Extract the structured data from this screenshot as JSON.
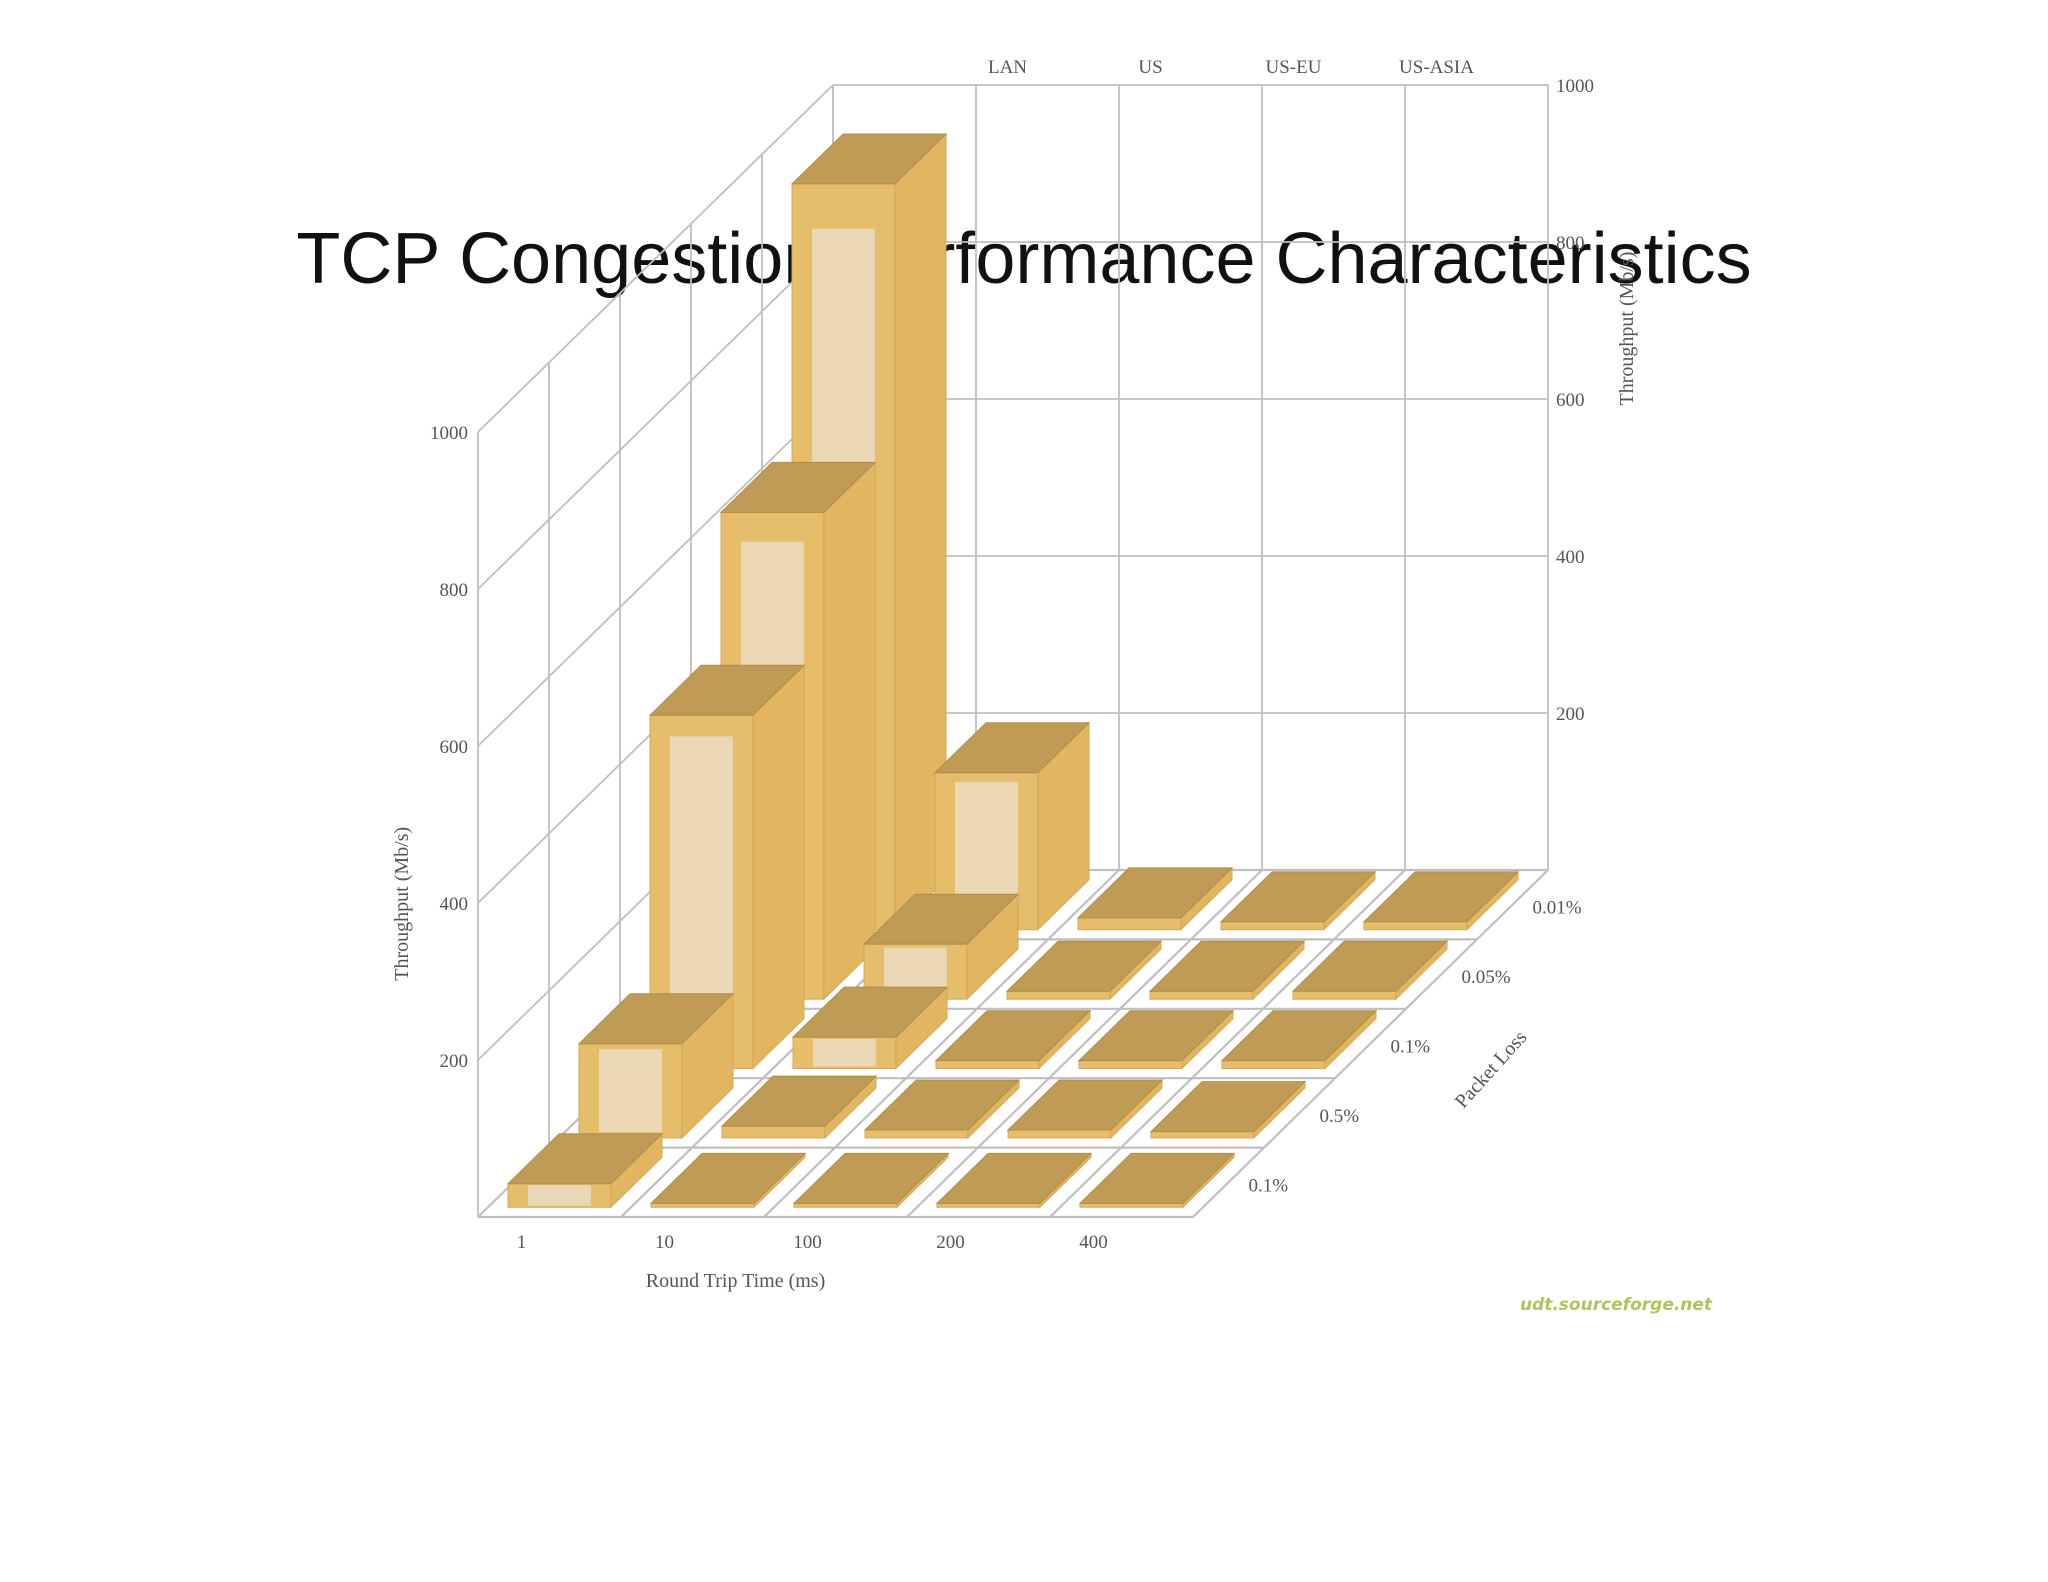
{
  "slide": {
    "title": "TCP Congestion Performance Characteristics"
  },
  "chart_data": {
    "type": "bar3d",
    "x_axis": {
      "label": "Round Trip Time (ms)",
      "categories": [
        "1",
        "10",
        "100",
        "200",
        "400"
      ]
    },
    "depth_axis": {
      "label": "Packet Loss",
      "categories": [
        "0.1%",
        "0.5%",
        "0.1%",
        "0.05%",
        "0.01%"
      ]
    },
    "back_labels": [
      "LAN",
      "US",
      "US-EU",
      "US-ASIA"
    ],
    "y_axis": {
      "label": "Throughput (Mb/s)",
      "ticks": [
        "200",
        "400",
        "600",
        "800",
        "1000"
      ],
      "ylim": [
        0,
        1000
      ]
    },
    "values": [
      [
        30,
        5,
        5,
        5,
        5
      ],
      [
        120,
        15,
        10,
        10,
        8
      ],
      [
        450,
        40,
        10,
        10,
        10
      ],
      [
        620,
        70,
        10,
        10,
        10
      ],
      [
        950,
        200,
        15,
        10,
        10
      ]
    ],
    "colors": {
      "bar_front": "#ead7b6",
      "bar_edge": "#e6bd6a",
      "bar_top": "#bf9b55",
      "bar_side": "#e2b661",
      "grid": "#bfbfbf"
    },
    "watermark": "udt.sourceforge.net"
  }
}
